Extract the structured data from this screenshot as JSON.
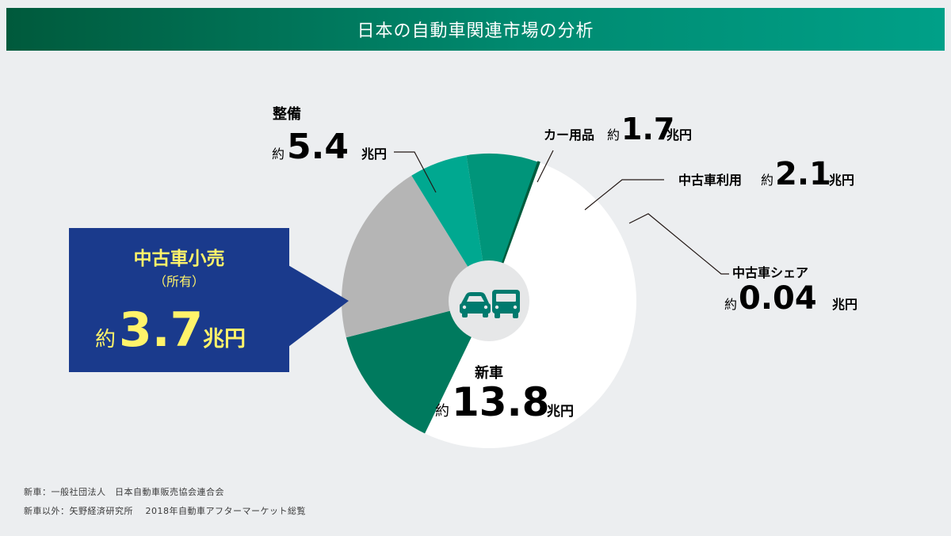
{
  "title": "日本の自動車関連市場の分析",
  "unit": "兆円",
  "approx": "約",
  "chart_data": {
    "type": "pie",
    "style": "donut",
    "title": "日本の自動車関連市場の分析",
    "slices": [
      {
        "label": "新車",
        "value": 13.8,
        "value_text": "13.8",
        "color": "#ffffff"
      },
      {
        "label": "中古車小売",
        "sub_label": "（所有）",
        "value": 3.7,
        "value_text": "3.7",
        "color": "#007a5e"
      },
      {
        "label": "整備",
        "value": 5.4,
        "value_text": "5.4",
        "color": "#b5b5b5"
      },
      {
        "label": "カー用品",
        "value": 1.7,
        "value_text": "1.7",
        "color": "#00a890"
      },
      {
        "label": "中古車利用",
        "value": 2.1,
        "value_text": "2.1",
        "color": "#00957a"
      },
      {
        "label": "中古車シェア",
        "value": 0.04,
        "value_text": "0.04",
        "color": "#005c3e"
      }
    ],
    "center_icons": [
      "car-icon",
      "truck-icon"
    ],
    "highlight_color": "#1a3a8c",
    "highlight_value_color": "#fff36a"
  },
  "sources": [
    "新車：一般社団法人　日本自動車販売協会連合会",
    "新車以外：矢野経済研究所　 2018年自動車アフターマーケット総覧"
  ]
}
